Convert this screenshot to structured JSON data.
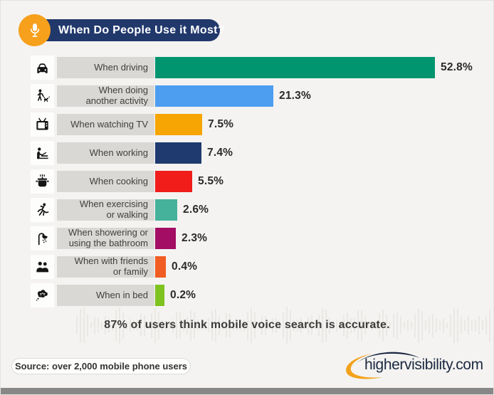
{
  "header": {
    "title": "When Do People Use it Most?"
  },
  "chart_data": {
    "type": "bar",
    "orientation": "horizontal",
    "unit": "%",
    "title": "When Do People Use it Most?",
    "categories": [
      "When driving",
      "When doing\nanother activity",
      "When watching TV",
      "When working",
      "When cooking",
      "When exercising\nor walking",
      "When showering or\nusing the bathroom",
      "When with friends\nor family",
      "When in bed"
    ],
    "values": [
      52.8,
      21.3,
      7.5,
      7.4,
      5.5,
      2.6,
      2.3,
      0.4,
      0.2
    ],
    "value_labels": [
      "52.8%",
      "21.3%",
      "7.5%",
      "7.4%",
      "5.5%",
      "2.6%",
      "2.3%",
      "0.4%",
      "0.2%"
    ],
    "bar_colors": [
      "#00956f",
      "#4d9df0",
      "#f6a503",
      "#1e3a6e",
      "#f01d1b",
      "#45b29b",
      "#a40d64",
      "#f15c22",
      "#7dc21e"
    ],
    "icons": [
      "car-icon",
      "walking-dog-icon",
      "tv-icon",
      "working-icon",
      "cooking-icon",
      "running-icon",
      "shower-icon",
      "friends-icon",
      "sleep-icon"
    ],
    "legend": null,
    "grid": false
  },
  "callout": {
    "text": "87% of users think mobile voice search is accurate."
  },
  "footer": {
    "source": "Source: over 2,000 mobile phone users",
    "logo": "highervisibility.com"
  },
  "colors": {
    "background": "#f4f3f1",
    "header_pill": "#21386b",
    "header_circle": "#f7a01c",
    "label_box": "#d9d8d5",
    "icon_box": "#fdfdfb",
    "bottom_bar": "#878787"
  }
}
